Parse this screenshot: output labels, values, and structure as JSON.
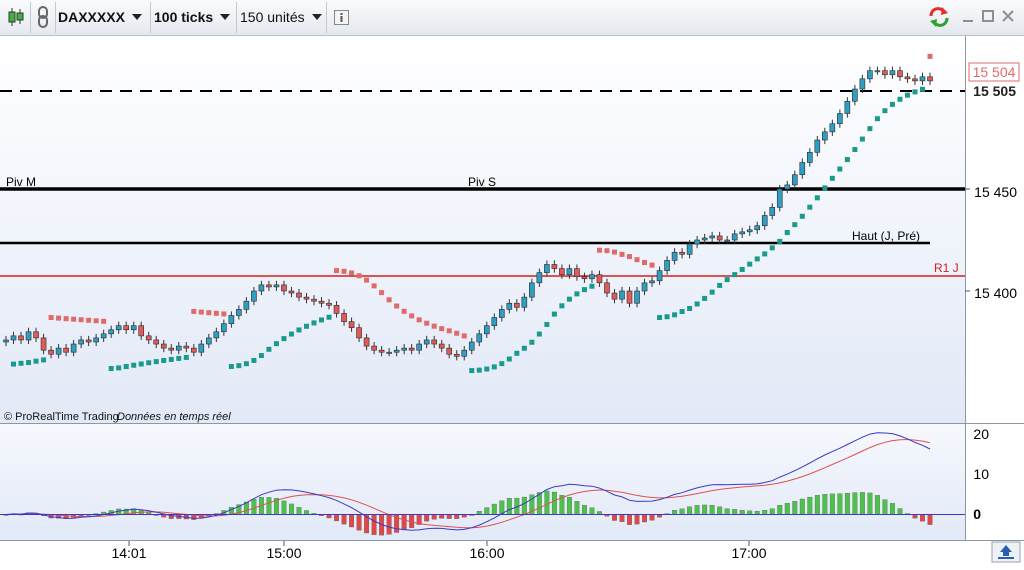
{
  "toolbar": {
    "instrument": "DAXXXXX",
    "period": "100 ticks",
    "units": "150 unités"
  },
  "price_axis": {
    "ticks": [
      "15 450",
      "15 400"
    ],
    "current_price": "15 504",
    "current_price_color": "#e06a6a"
  },
  "levels": [
    {
      "label": "Piv M",
      "color": "#000000"
    },
    {
      "label": "Piv S",
      "color": "#000000"
    },
    {
      "label": "Haut (J, Pré)",
      "color": "#000000"
    },
    {
      "label": "R1 J",
      "color": "#d42020"
    }
  ],
  "credits": {
    "brand": "© ProRealTime Trading",
    "realtime": "Données en temps réel"
  },
  "indicator_axis": {
    "ticks": [
      "20",
      "10",
      "0"
    ]
  },
  "time_axis": {
    "ticks": [
      "14:01",
      "15:00",
      "16:00",
      "17:00"
    ]
  },
  "colors": {
    "up": "#2f9ec2",
    "down": "#e05a5a",
    "sar_up": "#1a9a8c",
    "sar_down": "#e06a6a",
    "hist_up": "#4cc24c",
    "hist_down": "#e04848",
    "line_fast": "#3a3ac8",
    "line_slow": "#e05050"
  },
  "chart_data": {
    "type": "candlestick",
    "closes": [
      15376,
      15378,
      15376,
      15380,
      15377,
      15371,
      15369,
      15372,
      15370,
      15374,
      15376,
      15375,
      15377,
      15379,
      15381,
      15383,
      15381,
      15383,
      15378,
      15376,
      15374,
      15372,
      15371,
      15373,
      15372,
      15370,
      15374,
      15377,
      15380,
      15384,
      15388,
      15391,
      15395,
      15400,
      15403,
      15402,
      15403,
      15400,
      15399,
      15397,
      15396,
      15395,
      15394,
      15393,
      15389,
      15385,
      15382,
      15377,
      15373,
      15371,
      15370,
      15370,
      15371,
      15372,
      15371,
      15374,
      15376,
      15374,
      15372,
      15369,
      15368,
      15371,
      15375,
      15379,
      15383,
      15387,
      15391,
      15394,
      15392,
      15397,
      15404,
      15409,
      15413,
      15411,
      15408,
      15411,
      15407,
      15406,
      15408,
      15404,
      15399,
      15396,
      15400,
      15394,
      15400,
      15404,
      15405,
      15410,
      15415,
      15419,
      15418,
      15423,
      15425,
      15426,
      15427,
      15425,
      15425,
      15428,
      15429,
      15430,
      15432,
      15437,
      15441,
      15450,
      15452,
      15457,
      15463,
      15468,
      15474,
      15478,
      15482,
      15487,
      15493,
      15499,
      15504,
      15508,
      15508,
      15506,
      15508,
      15505,
      15504,
      15503,
      15505,
      15503
    ]
  }
}
